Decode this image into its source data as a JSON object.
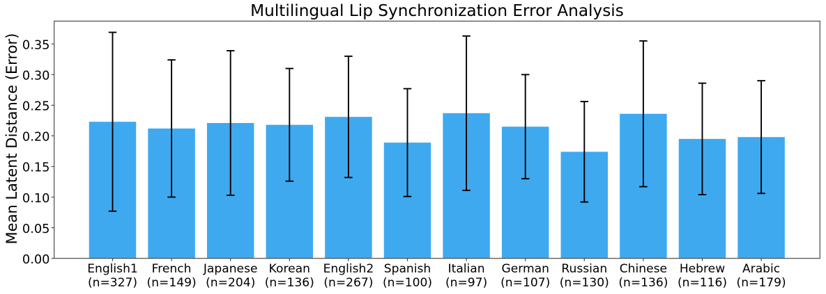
{
  "chart_data": {
    "type": "bar",
    "title": "Multilingual Lip Synchronization Error Analysis",
    "xlabel": "",
    "ylabel": "Mean Latent Distance (Error)",
    "categories": [
      "English1",
      "French",
      "Japanese",
      "Korean",
      "English2",
      "Spanish",
      "Italian",
      "German",
      "Russian",
      "Chinese",
      "Hebrew",
      "Arabic"
    ],
    "sample_sizes": [
      327,
      149,
      204,
      136,
      267,
      100,
      97,
      107,
      130,
      136,
      116,
      179
    ],
    "category_sublabels": [
      "(n=327)",
      "(n=149)",
      "(n=204)",
      "(n=136)",
      "(n=267)",
      "(n=100)",
      "(n=97)",
      "(n=107)",
      "(n=130)",
      "(n=136)",
      "(n=116)",
      "(n=179)"
    ],
    "values": [
      0.223,
      0.212,
      0.221,
      0.218,
      0.231,
      0.189,
      0.237,
      0.215,
      0.174,
      0.236,
      0.195,
      0.198
    ],
    "errors": [
      0.146,
      0.112,
      0.118,
      0.092,
      0.099,
      0.088,
      0.126,
      0.085,
      0.082,
      0.119,
      0.091,
      0.092
    ],
    "yticks": [
      "0.00",
      "0.05",
      "0.10",
      "0.15",
      "0.20",
      "0.25",
      "0.30",
      "0.35"
    ],
    "ytick_values": [
      0.0,
      0.05,
      0.1,
      0.15,
      0.2,
      0.25,
      0.3,
      0.35
    ],
    "ylim": [
      0,
      0.3873
    ],
    "grid": false,
    "legend": "none",
    "bar_color": "#3FA9F0",
    "error_bar_color": "#000000",
    "text_color": "#000000",
    "spine_color": "#4a4a4a",
    "background_color": "#ffffff"
  }
}
